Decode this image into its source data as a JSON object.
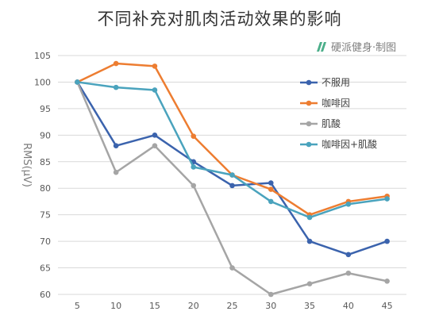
{
  "chart_data": {
    "type": "line",
    "title": "不同补充对肌肉活动效果的影响",
    "xlabel": "",
    "ylabel": "RMS(μV)",
    "x": [
      5,
      10,
      15,
      20,
      25,
      30,
      35,
      40,
      45
    ],
    "ylim": [
      60,
      105
    ],
    "yticks": [
      60,
      65,
      70,
      75,
      80,
      85,
      90,
      95,
      100,
      105
    ],
    "grid": true,
    "legend": "right",
    "series": [
      {
        "name": "不服用",
        "color": "#3b63ad",
        "values": [
          100,
          88,
          90,
          85,
          80.5,
          81,
          70,
          67.5,
          70
        ]
      },
      {
        "name": "咖啡因",
        "color": "#ed7d31",
        "values": [
          100,
          103.5,
          103,
          89.8,
          82.5,
          79.8,
          75,
          77.5,
          78.5
        ]
      },
      {
        "name": "肌酸",
        "color": "#a5a5a5",
        "values": [
          100,
          83,
          88,
          80.5,
          65,
          60,
          62,
          64,
          62.5
        ]
      },
      {
        "name": "咖啡因+肌酸",
        "color": "#4aa3bd",
        "values": [
          100,
          99,
          98.5,
          84,
          82.5,
          77.5,
          74.5,
          77,
          78
        ]
      }
    ]
  },
  "brand": {
    "text": "硬派健身·制图",
    "logo_icon": "brand-logo-icon",
    "color": "#4caf8a"
  }
}
